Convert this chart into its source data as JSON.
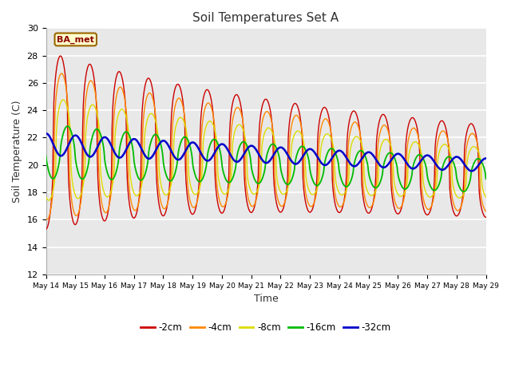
{
  "title": "Soil Temperatures Set A",
  "xlabel": "Time",
  "ylabel": "Soil Temperature (C)",
  "ylim": [
    12,
    30
  ],
  "yticks": [
    12,
    14,
    16,
    18,
    20,
    22,
    24,
    26,
    28,
    30
  ],
  "annotation": "BA_met",
  "fig_bg_color": "#ffffff",
  "plot_bg_color": "#e8e8e8",
  "colors": {
    "-2cm": "#cc0000",
    "-4cm": "#ff8800",
    "-8cm": "#dddd00",
    "-16cm": "#00bb00",
    "-32cm": "#0000cc"
  },
  "legend_order": [
    "-2cm",
    "-4cm",
    "-8cm",
    "-16cm",
    "-32cm"
  ],
  "n_days": 15,
  "start_day": 14,
  "points_per_day": 48
}
